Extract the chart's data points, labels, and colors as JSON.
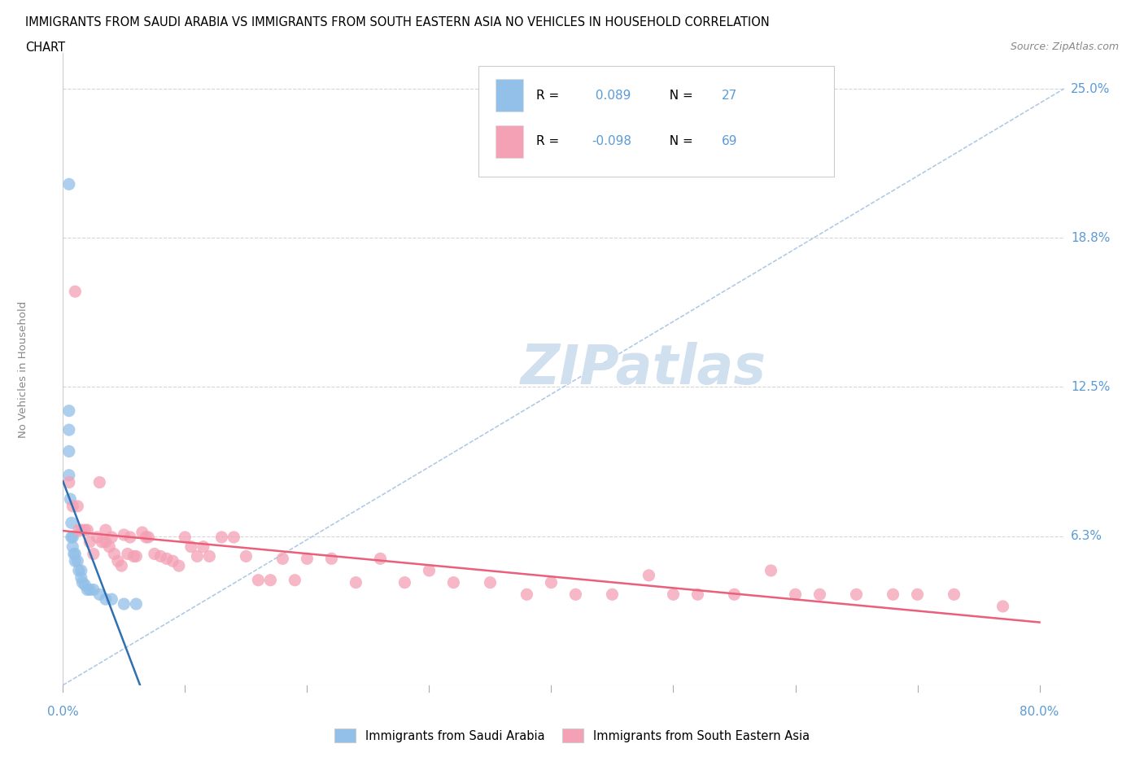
{
  "title_line1": "IMMIGRANTS FROM SAUDI ARABIA VS IMMIGRANTS FROM SOUTH EASTERN ASIA NO VEHICLES IN HOUSEHOLD CORRELATION",
  "title_line2": "CHART",
  "source_text": "Source: ZipAtlas.com",
  "ylabel": "No Vehicles in Household",
  "xlim": [
    0.0,
    0.82
  ],
  "ylim": [
    0.0,
    0.265
  ],
  "saudi_color": "#92c0e8",
  "sea_color": "#f4a0b5",
  "saudi_R": 0.089,
  "saudi_N": 27,
  "sea_R": -0.098,
  "sea_N": 69,
  "watermark": "ZIPatlas",
  "watermark_color": "#d0e0ee",
  "bg_color": "#ffffff",
  "grid_color": "#cccccc",
  "axis_label_color": "#5b9bd5",
  "ytick_vals": [
    0.0625,
    0.125,
    0.1875,
    0.25
  ],
  "ytick_labels": [
    "6.3%",
    "12.5%",
    "18.8%",
    "25.0%"
  ],
  "saudi_scatter_x": [
    0.005,
    0.005,
    0.005,
    0.005,
    0.005,
    0.006,
    0.007,
    0.007,
    0.008,
    0.008,
    0.009,
    0.01,
    0.01,
    0.012,
    0.013,
    0.015,
    0.015,
    0.016,
    0.018,
    0.02,
    0.022,
    0.025,
    0.03,
    0.035,
    0.04,
    0.05,
    0.06
  ],
  "saudi_scatter_y": [
    0.21,
    0.115,
    0.107,
    0.098,
    0.088,
    0.078,
    0.068,
    0.062,
    0.062,
    0.058,
    0.055,
    0.055,
    0.052,
    0.052,
    0.048,
    0.048,
    0.045,
    0.043,
    0.042,
    0.04,
    0.04,
    0.04,
    0.038,
    0.036,
    0.036,
    0.034,
    0.034
  ],
  "sea_scatter_x": [
    0.005,
    0.008,
    0.01,
    0.012,
    0.013,
    0.015,
    0.018,
    0.02,
    0.022,
    0.025,
    0.028,
    0.03,
    0.032,
    0.035,
    0.035,
    0.038,
    0.04,
    0.042,
    0.045,
    0.048,
    0.05,
    0.053,
    0.055,
    0.058,
    0.06,
    0.065,
    0.068,
    0.07,
    0.075,
    0.08,
    0.085,
    0.09,
    0.095,
    0.1,
    0.105,
    0.11,
    0.115,
    0.12,
    0.13,
    0.14,
    0.15,
    0.16,
    0.17,
    0.18,
    0.19,
    0.2,
    0.22,
    0.24,
    0.26,
    0.28,
    0.3,
    0.32,
    0.35,
    0.38,
    0.4,
    0.42,
    0.45,
    0.48,
    0.5,
    0.52,
    0.55,
    0.58,
    0.6,
    0.62,
    0.65,
    0.68,
    0.7,
    0.73,
    0.77
  ],
  "sea_scatter_y": [
    0.085,
    0.075,
    0.165,
    0.075,
    0.065,
    0.065,
    0.065,
    0.065,
    0.06,
    0.055,
    0.062,
    0.085,
    0.06,
    0.065,
    0.06,
    0.058,
    0.062,
    0.055,
    0.052,
    0.05,
    0.063,
    0.055,
    0.062,
    0.054,
    0.054,
    0.064,
    0.062,
    0.062,
    0.055,
    0.054,
    0.053,
    0.052,
    0.05,
    0.062,
    0.058,
    0.054,
    0.058,
    0.054,
    0.062,
    0.062,
    0.054,
    0.044,
    0.044,
    0.053,
    0.044,
    0.053,
    0.053,
    0.043,
    0.053,
    0.043,
    0.048,
    0.043,
    0.043,
    0.038,
    0.043,
    0.038,
    0.038,
    0.046,
    0.038,
    0.038,
    0.038,
    0.048,
    0.038,
    0.038,
    0.038,
    0.038,
    0.038,
    0.038,
    0.033
  ],
  "saudi_trend_x": [
    0.0,
    0.065
  ],
  "sea_trend_x": [
    0.0,
    0.8
  ],
  "ref_line_color": "#adc8e8",
  "saudi_trend_color": "#3070b0",
  "sea_trend_color": "#e8607a"
}
